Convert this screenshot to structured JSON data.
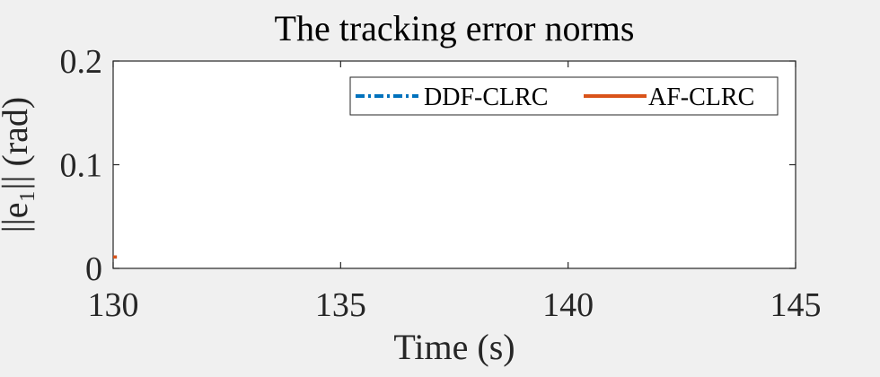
{
  "chart_data": {
    "type": "line",
    "title": "The tracking error norms",
    "xlabel": "Time (s)",
    "ylabel": "||e₁|| (rad)",
    "xlim": [
      130,
      145
    ],
    "ylim": [
      0,
      0.2
    ],
    "xticks": [
      130,
      135,
      140,
      145
    ],
    "yticks": [
      0,
      0.1,
      0.2
    ],
    "xtick_labels": [
      "130",
      "135",
      "140",
      "145"
    ],
    "ytick_labels": [
      "0",
      "0.1",
      "0.2"
    ],
    "grid": false,
    "legend_position": "top-right",
    "series": [
      {
        "name": "DDF-CLRC",
        "style": "dash-dot",
        "color": "#0072BD",
        "points": [
          [
            130,
            0.011
          ],
          [
            130.08,
            0.011
          ]
        ]
      },
      {
        "name": "AF-CLRC",
        "style": "solid",
        "color": "#D95319",
        "points": [
          [
            130,
            0.011
          ],
          [
            130.08,
            0.011
          ]
        ]
      }
    ]
  }
}
